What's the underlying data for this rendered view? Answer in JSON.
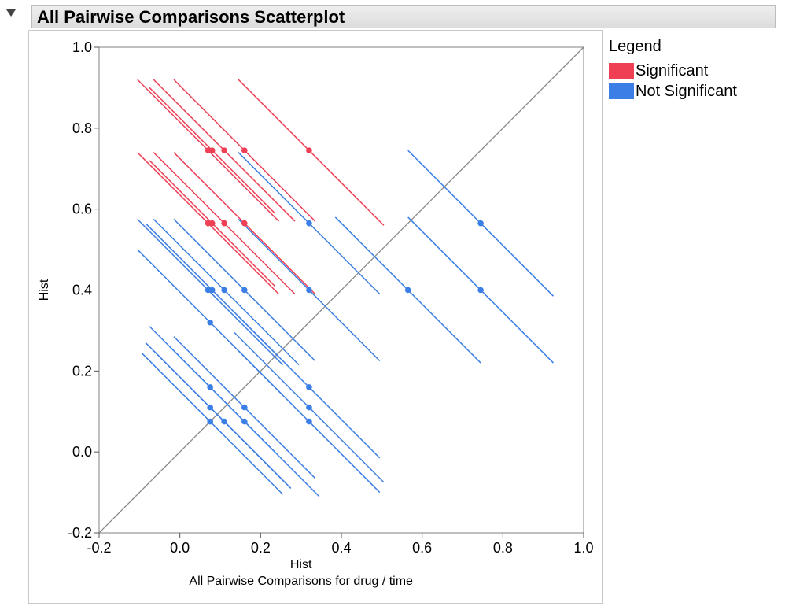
{
  "report": {
    "title": "All Pairwise Comparisons Scatterplot"
  },
  "legend": {
    "title": "Legend",
    "items": [
      {
        "label": "Significant",
        "color": "#EE3F55"
      },
      {
        "label": "Not Significant",
        "color": "#3B7EE6"
      }
    ]
  },
  "chart_data": {
    "type": "scatter",
    "title": "",
    "xlabel": "Hist",
    "ylabel": "Hist",
    "footnote": "All Pairwise Comparisons for drug / time",
    "xlim": [
      -0.2,
      1.0
    ],
    "ylim": [
      -0.2,
      1.0
    ],
    "xticks": [
      "-0.2",
      "0.0",
      "0.2",
      "0.4",
      "0.6",
      "0.8",
      "1.0"
    ],
    "yticks": [
      "-0.2",
      "0.0",
      "0.2",
      "0.4",
      "0.6",
      "0.8",
      "1.0"
    ],
    "grid": false,
    "legend_position": "right",
    "reference_line": "y = x",
    "segment_direction": "slope -1",
    "series": [
      {
        "name": "Significant",
        "color": "#EE3F55",
        "points": [
          {
            "x": 0.07,
            "y": 0.745,
            "ci": [
              -0.105,
              0.245
            ]
          },
          {
            "x": 0.08,
            "y": 0.745,
            "ci": [
              -0.075,
              0.235
            ]
          },
          {
            "x": 0.11,
            "y": 0.745,
            "ci": [
              -0.065,
              0.285
            ]
          },
          {
            "x": 0.16,
            "y": 0.745,
            "ci": [
              -0.015,
              0.335
            ]
          },
          {
            "x": 0.32,
            "y": 0.745,
            "ci": [
              0.145,
              0.505
            ]
          },
          {
            "x": 0.07,
            "y": 0.565,
            "ci": [
              -0.105,
              0.245
            ]
          },
          {
            "x": 0.08,
            "y": 0.565,
            "ci": [
              -0.075,
              0.235
            ]
          },
          {
            "x": 0.11,
            "y": 0.565,
            "ci": [
              -0.065,
              0.285
            ]
          },
          {
            "x": 0.16,
            "y": 0.565,
            "ci": [
              -0.015,
              0.335
            ]
          }
        ]
      },
      {
        "name": "Not Significant",
        "color": "#3B7EE6",
        "points": [
          {
            "x": 0.32,
            "y": 0.565,
            "ci": [
              0.145,
              0.495
            ]
          },
          {
            "x": 0.745,
            "y": 0.565,
            "ci": [
              0.565,
              0.925
            ]
          },
          {
            "x": 0.07,
            "y": 0.4,
            "ci": [
              -0.105,
              0.255
            ]
          },
          {
            "x": 0.08,
            "y": 0.4,
            "ci": [
              -0.085,
              0.245
            ]
          },
          {
            "x": 0.11,
            "y": 0.4,
            "ci": [
              -0.065,
              0.295
            ]
          },
          {
            "x": 0.16,
            "y": 0.4,
            "ci": [
              -0.015,
              0.335
            ]
          },
          {
            "x": 0.32,
            "y": 0.4,
            "ci": [
              0.145,
              0.495
            ]
          },
          {
            "x": 0.565,
            "y": 0.4,
            "ci": [
              0.385,
              0.745
            ]
          },
          {
            "x": 0.745,
            "y": 0.4,
            "ci": [
              0.565,
              0.925
            ]
          },
          {
            "x": 0.075,
            "y": 0.32,
            "ci": [
              -0.105,
              0.255
            ]
          },
          {
            "x": 0.075,
            "y": 0.16,
            "ci": [
              -0.075,
              0.235
            ]
          },
          {
            "x": 0.075,
            "y": 0.11,
            "ci": [
              -0.085,
              0.265
            ]
          },
          {
            "x": 0.075,
            "y": 0.075,
            "ci": [
              -0.095,
              0.255
            ]
          },
          {
            "x": 0.11,
            "y": 0.075,
            "ci": [
              -0.065,
              0.275
            ]
          },
          {
            "x": 0.16,
            "y": 0.11,
            "ci": [
              -0.015,
              0.335
            ]
          },
          {
            "x": 0.16,
            "y": 0.075,
            "ci": [
              -0.025,
              0.345
            ]
          },
          {
            "x": 0.32,
            "y": 0.16,
            "ci": [
              0.145,
              0.495
            ]
          },
          {
            "x": 0.32,
            "y": 0.11,
            "ci": [
              0.135,
              0.505
            ]
          },
          {
            "x": 0.32,
            "y": 0.075,
            "ci": [
              0.145,
              0.495
            ]
          }
        ]
      }
    ]
  }
}
